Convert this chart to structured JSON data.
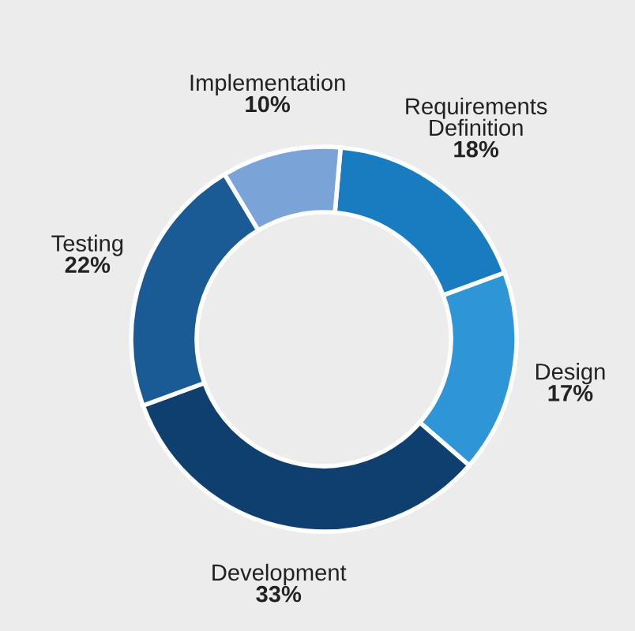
{
  "chart_data": {
    "type": "donut",
    "categories": [
      "Requirements\nDefinition",
      "Design",
      "Development",
      "Testing",
      "Implementation"
    ],
    "values": [
      18,
      17,
      33,
      22,
      10
    ],
    "value_labels": [
      "18%",
      "17%",
      "33%",
      "22%",
      "10%"
    ],
    "colors": [
      "#1a7cc0",
      "#2e95d6",
      "#0f3f6f",
      "#1a5a95",
      "#7aa3d7"
    ]
  }
}
